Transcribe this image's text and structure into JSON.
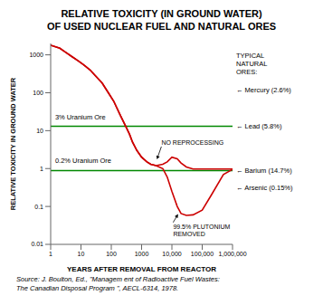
{
  "chart_data": {
    "type": "line",
    "title": "RELATIVE TOXICITY (IN GROUND WATER)\nOF USED NUCLEAR FUEL AND NATURAL ORES",
    "x_label": "YEARS AFTER REMOVAL FROM REACTOR",
    "y_label": "RELATIVE TOXICITY IN GROUND WATER",
    "log": true,
    "grid": false,
    "xlim": [
      1,
      1000000
    ],
    "ylim": [
      0.01,
      2000
    ],
    "xticks": [
      1,
      10,
      100,
      1000,
      {
        "value": 10000,
        "label": "10,000"
      },
      {
        "value": 100000,
        "label": "100,000"
      },
      {
        "value": 1000000,
        "label": "1,000,000"
      }
    ],
    "yticks": [
      0.01,
      0.1,
      1,
      10,
      100,
      1000
    ],
    "x": [
      1,
      2,
      3,
      5,
      8,
      12,
      20,
      30,
      50,
      80,
      120,
      200,
      300,
      400,
      500,
      700,
      1000,
      1500,
      2000,
      3000,
      5000,
      7000,
      10000,
      15000,
      20000,
      30000,
      50000,
      100000,
      200000,
      500000,
      1000000
    ],
    "series": [
      {
        "color": "#cc0000",
        "values": [
          1800,
          1500,
          1200,
          900,
          700,
          550,
          400,
          280,
          180,
          100,
          60,
          25,
          13,
          8,
          5,
          3,
          2,
          1.5,
          1.3,
          1.2,
          1.3,
          1.5,
          2.0,
          1.8,
          1.4,
          1.1,
          0.97,
          0.97,
          0.97,
          0.97,
          0.97
        ]
      },
      {
        "color": "#cc0000",
        "values": [
          1800,
          1500,
          1200,
          900,
          700,
          550,
          400,
          280,
          180,
          100,
          60,
          25,
          13,
          8,
          5,
          3,
          2,
          1.5,
          1.3,
          1.2,
          1.0,
          0.6,
          0.25,
          0.1,
          0.065,
          0.058,
          0.06,
          0.08,
          0.2,
          0.7,
          0.95
        ]
      }
    ],
    "reference_lines": [
      {
        "value": 13.0,
        "color": "#008800",
        "label": "3% Uranium Ore",
        "label_x": 1.4,
        "label_y": 18.0
      },
      {
        "value": 0.88,
        "color": "#008800",
        "label": "0.2% Uranium Ore",
        "label_x": 1.4,
        "label_y": 1.25
      }
    ],
    "annotations": [
      {
        "text": "NO REPROCESSING",
        "x": 3200,
        "y": 1.75,
        "text_x": 4500,
        "text_y": 3.8,
        "text_position": "above"
      },
      {
        "text": "99.5% PLUTONIUM\nREMOVED",
        "x": 16000,
        "y": 0.063,
        "text_x": 11000,
        "text_y": 0.038,
        "text_position": "below"
      }
    ],
    "side_labels": [
      {
        "text": "TYPICAL\nNATURAL\nORES:",
        "y": 600
      },
      {
        "text": "← Mercury (2.6%)",
        "y": 120
      },
      {
        "text": "← Lead (5.8%)",
        "y": 13.0
      },
      {
        "text": "← Barium (14.7%)",
        "y": 0.88
      },
      {
        "text": "← Arsenic (0.15%)",
        "y": 0.32
      }
    ],
    "source": [
      "Source: J. Boulton, Ed., \"Managem ent of Radioactive Fuel Wastes:",
      "The Canadian Disposal Program \", AECL-6314, 1978."
    ]
  }
}
